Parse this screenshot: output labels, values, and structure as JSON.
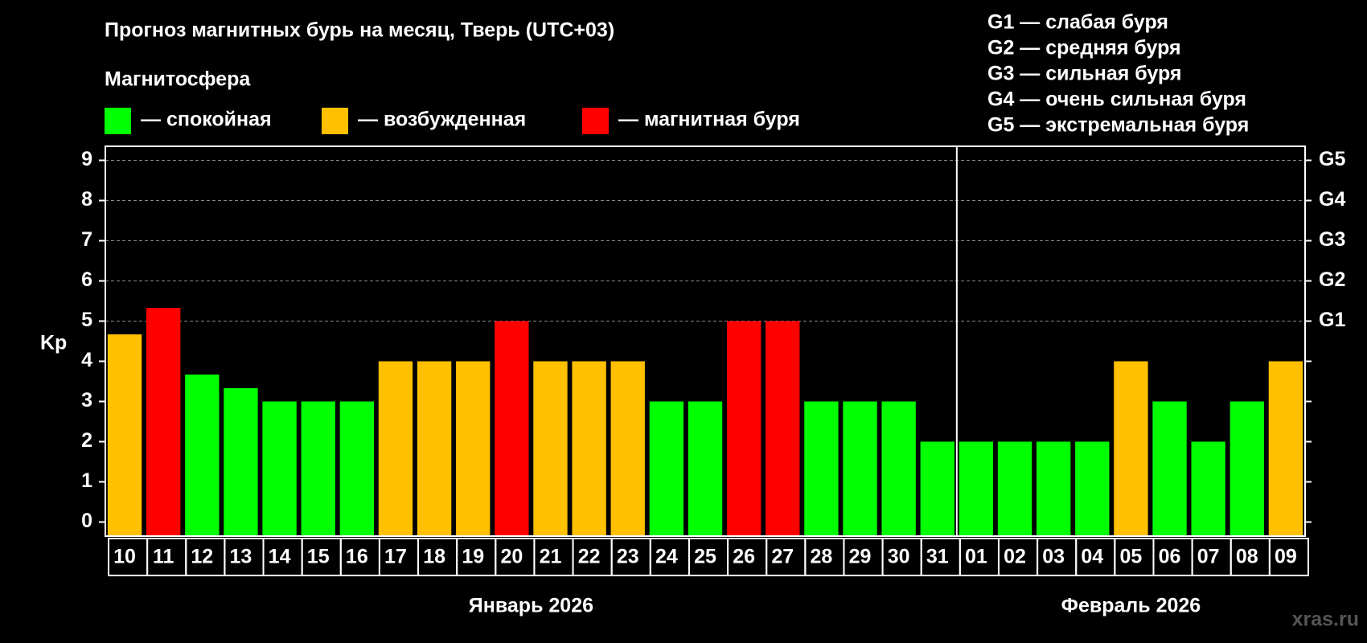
{
  "chart_data": {
    "type": "bar",
    "title": "Прогноз магнитных бурь на месяц, Тверь (UTC+03)",
    "subtitle": "Магнитосфера",
    "legend": [
      {
        "name": "— спокойная",
        "color": "#00ff00"
      },
      {
        "name": "— возбужденная",
        "color": "#ffc000"
      },
      {
        "name": "— магнитная буря",
        "color": "#ff0000"
      }
    ],
    "scale_legend": [
      "G1 — слабая буря",
      "G2 — средняя буря",
      "G3 — сильная буря",
      "G4 — очень сильная буря",
      "G5 — экстремальная буря"
    ],
    "y_label": "Kp",
    "categories": [
      "10",
      "11",
      "12",
      "13",
      "14",
      "15",
      "16",
      "17",
      "18",
      "19",
      "20",
      "21",
      "22",
      "23",
      "24",
      "25",
      "26",
      "27",
      "28",
      "29",
      "30",
      "31",
      "01",
      "02",
      "03",
      "04",
      "05",
      "06",
      "07",
      "08",
      "09"
    ],
    "x_groups": [
      "Январь 2026",
      "Февраль 2026"
    ],
    "values": [
      4.67,
      5.33,
      3.67,
      3.33,
      3,
      3,
      3,
      4,
      4,
      4,
      5,
      4,
      4,
      4,
      3,
      3,
      5,
      5,
      3,
      3,
      3,
      2,
      2,
      2,
      2,
      2,
      4,
      3,
      2,
      3,
      4
    ],
    "colors": [
      "#ffc000",
      "#ff0000",
      "#00ff00",
      "#00ff00",
      "#00ff00",
      "#00ff00",
      "#00ff00",
      "#ffc000",
      "#ffc000",
      "#ffc000",
      "#ff0000",
      "#ffc000",
      "#ffc000",
      "#ffc000",
      "#00ff00",
      "#00ff00",
      "#ff0000",
      "#ff0000",
      "#00ff00",
      "#00ff00",
      "#00ff00",
      "#00ff00",
      "#00ff00",
      "#00ff00",
      "#00ff00",
      "#00ff00",
      "#ffc000",
      "#00ff00",
      "#00ff00",
      "#00ff00",
      "#ffc000"
    ],
    "ylim": [
      -0.35,
      9.35
    ],
    "yticks": [
      0,
      1,
      2,
      3,
      4,
      5,
      6,
      7,
      8,
      9
    ],
    "y2ticks": [
      {
        "value": 5,
        "label": "G1"
      },
      {
        "value": 6,
        "label": "G2"
      },
      {
        "value": 7,
        "label": "G3"
      },
      {
        "value": 8,
        "label": "G4"
      },
      {
        "value": 9,
        "label": "G5"
      }
    ],
    "grid": true,
    "watermark": "xras.ru"
  }
}
